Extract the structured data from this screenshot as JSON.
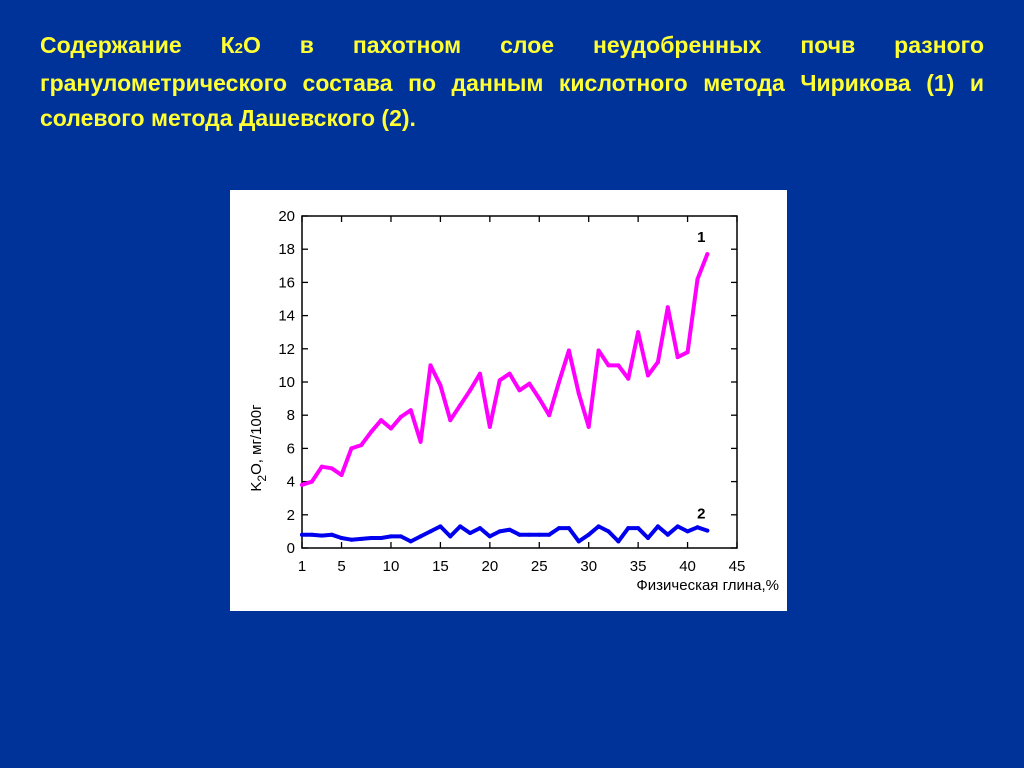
{
  "slide": {
    "title_part1": "Содержание К",
    "title_sub": "2",
    "title_part2": "О в пахотном слое неудобренных почв разного гранулометрического состава по данным кислотного метода Чирикова (1) и  солевого метода Дашевского (2)."
  },
  "colors": {
    "background": "#003399",
    "title": "#FFFF33",
    "panel": "#ffffff",
    "series1": "#FF00FF",
    "series2": "#0000EE"
  },
  "chart_data": {
    "type": "line",
    "title": "",
    "xlabel": "Физическая глина,%",
    "ylabel_part1": "K",
    "ylabel_sub": "2",
    "ylabel_part2": "O, мг/100г",
    "xlim": [
      1,
      45
    ],
    "ylim": [
      0,
      20
    ],
    "x_ticks": [
      1,
      5,
      10,
      15,
      20,
      25,
      30,
      35,
      40,
      45
    ],
    "y_ticks": [
      0,
      2,
      4,
      6,
      8,
      10,
      12,
      14,
      16,
      18,
      20
    ],
    "grid": false,
    "legend": "inline labels at line ends",
    "series": [
      {
        "name": "1",
        "color": "#FF00FF",
        "x": [
          1,
          2,
          3,
          4,
          5,
          6,
          7,
          8,
          9,
          10,
          11,
          12,
          13,
          14,
          15,
          16,
          17,
          18,
          19,
          20,
          21,
          22,
          23,
          24,
          25,
          26,
          27,
          28,
          29,
          30,
          31,
          32,
          33,
          34,
          35,
          36,
          37,
          38,
          39,
          40,
          41,
          42
        ],
        "values": [
          3.8,
          4.0,
          4.9,
          4.8,
          4.4,
          6.0,
          6.2,
          7.0,
          7.7,
          7.2,
          7.9,
          8.3,
          6.4,
          11.0,
          9.8,
          7.7,
          8.6,
          9.5,
          10.5,
          7.3,
          10.1,
          10.5,
          9.5,
          9.9,
          9.0,
          8.0,
          10.0,
          11.9,
          9.3,
          7.3,
          11.9,
          11.0,
          11.0,
          10.2,
          13.0,
          10.4,
          11.2,
          14.5,
          11.5,
          11.8,
          16.2,
          17.7
        ]
      },
      {
        "name": "2",
        "color": "#0000EE",
        "x": [
          1,
          2,
          3,
          4,
          5,
          6,
          7,
          8,
          9,
          10,
          11,
          12,
          13,
          14,
          15,
          16,
          17,
          18,
          19,
          20,
          21,
          22,
          23,
          24,
          25,
          26,
          27,
          28,
          29,
          30,
          31,
          32,
          33,
          34,
          35,
          36,
          37,
          38,
          39,
          40,
          41,
          42
        ],
        "values": [
          0.8,
          0.8,
          0.75,
          0.8,
          0.6,
          0.5,
          0.55,
          0.6,
          0.6,
          0.7,
          0.7,
          0.4,
          0.7,
          1.0,
          1.3,
          0.7,
          1.3,
          0.9,
          1.2,
          0.7,
          1.0,
          1.1,
          0.8,
          0.8,
          0.8,
          0.8,
          1.2,
          1.2,
          0.4,
          0.8,
          1.3,
          1.0,
          0.4,
          1.2,
          1.2,
          0.6,
          1.3,
          0.8,
          1.3,
          1.0,
          1.25,
          1.05
        ]
      }
    ]
  }
}
